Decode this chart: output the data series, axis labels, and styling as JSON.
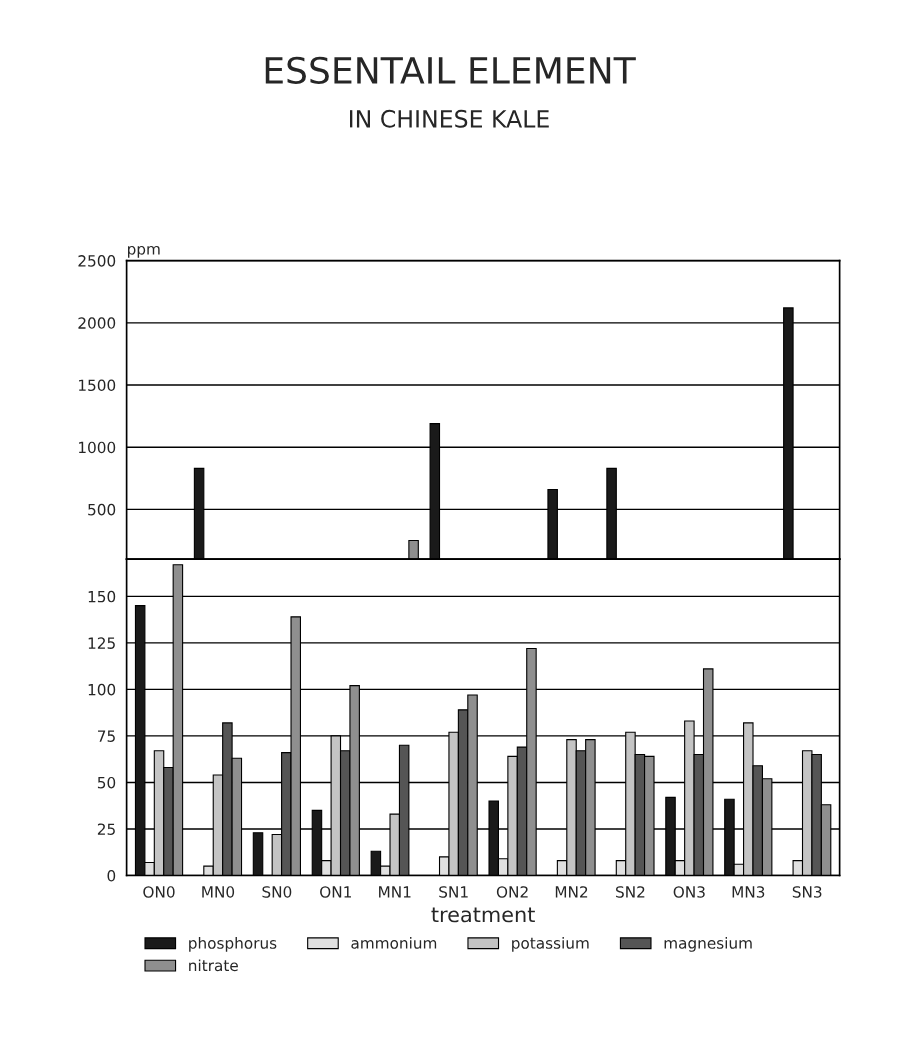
{
  "chart_data": [
    {
      "type": "bar",
      "title": "ESSENTAIL ELEMENT",
      "subtitle": "IN CHINESE KALE",
      "ylabel": "ppm",
      "categories": [
        null,
        null,
        null,
        null,
        null,
        null,
        null,
        null,
        null,
        null,
        null,
        null
      ],
      "series": [
        {
          "color": "#1a1a1a",
          "values": [
            null,
            830,
            null,
            null,
            null,
            1190,
            null,
            660,
            830,
            null,
            null,
            2120
          ]
        },
        {
          "color": "#e0e0e0",
          "values": [
            null,
            null,
            null,
            null,
            null,
            null,
            null,
            null,
            null,
            null,
            null,
            null
          ]
        },
        {
          "color": "#c4c4c4",
          "values": [
            null,
            null,
            null,
            null,
            null,
            null,
            null,
            null,
            null,
            null,
            null,
            null
          ]
        },
        {
          "color": "#555555",
          "values": [
            null,
            null,
            null,
            null,
            null,
            null,
            null,
            null,
            null,
            null,
            null,
            null
          ]
        },
        {
          "color": "#8f8f8f",
          "values": [
            null,
            null,
            null,
            null,
            250,
            null,
            null,
            null,
            null,
            null,
            null,
            null
          ]
        }
      ],
      "ylim": [
        100,
        2500
      ],
      "yticks": [
        500,
        1000,
        1500,
        2000,
        2500
      ],
      "grid": "y",
      "tick_labels": "y"
    },
    {
      "type": "bar",
      "xlabel": "treatment",
      "categories": [
        "ON0",
        "MN0",
        "SN0",
        "ON1",
        "MN1",
        "SN1",
        "ON2",
        "MN2",
        "SN2",
        "ON3",
        "MN3",
        "SN3"
      ],
      "series": [
        {
          "name": "phosphorus",
          "color": "#1a1a1a",
          "values": [
            145,
            null,
            23,
            35,
            13,
            null,
            40,
            null,
            null,
            42,
            41,
            null
          ]
        },
        {
          "name": "ammonium",
          "color": "#e0e0e0",
          "values": [
            7,
            5,
            null,
            8,
            5,
            10,
            9,
            8,
            8,
            8,
            6,
            8
          ]
        },
        {
          "name": "potassium",
          "color": "#c4c4c4",
          "values": [
            67,
            54,
            22,
            75,
            33,
            77,
            64,
            73,
            77,
            83,
            82,
            67
          ]
        },
        {
          "name": "magnesium",
          "color": "#555555",
          "values": [
            58,
            82,
            66,
            67,
            70,
            89,
            69,
            67,
            65,
            65,
            59,
            65
          ]
        },
        {
          "name": "nitrate",
          "color": "#8f8f8f",
          "values": [
            167,
            63,
            139,
            102,
            null,
            97,
            122,
            73,
            64,
            111,
            52,
            38
          ]
        }
      ],
      "ylim": [
        0,
        170
      ],
      "yticks": [
        0,
        25,
        50,
        75,
        100,
        125,
        150
      ],
      "grid": "y",
      "legend": "bottom"
    }
  ]
}
